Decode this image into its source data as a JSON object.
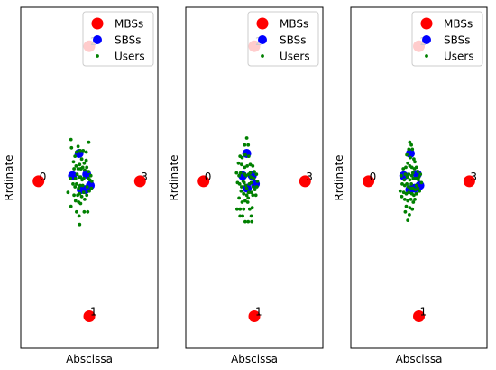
{
  "chart_data": [
    {
      "type": "scatter",
      "xlabel": "Abscissa",
      "ylabel": "Rrdinate",
      "xlim": [
        -1.35,
        1.35
      ],
      "ylim": [
        -1.2,
        1.25
      ],
      "grid": false,
      "legend_position": "top-right",
      "series": [
        {
          "name": "MBSs",
          "color": "#ff0000",
          "points": [
            {
              "x": -1.0,
              "y": 0.0,
              "label": "0"
            },
            {
              "x": 0.0,
              "y": -0.97,
              "label": "1"
            },
            {
              "x": 0.0,
              "y": 0.97,
              "label": "2"
            },
            {
              "x": 1.0,
              "y": 0.0,
              "label": "3"
            }
          ]
        },
        {
          "name": "SBSs",
          "color": "#0000ff",
          "points": [
            {
              "x": -0.2,
              "y": 0.2
            },
            {
              "x": -0.33,
              "y": 0.04
            },
            {
              "x": -0.16,
              "y": -0.06
            },
            {
              "x": -0.08,
              "y": -0.06
            },
            {
              "x": -0.05,
              "y": 0.05
            },
            {
              "x": 0.02,
              "y": -0.03
            }
          ]
        },
        {
          "name": "Users",
          "color": "#008000",
          "points": [
            {
              "x": -0.35,
              "y": 0.24
            },
            {
              "x": -0.31,
              "y": 0.14
            },
            {
              "x": -0.28,
              "y": 0.18
            },
            {
              "x": -0.25,
              "y": 0.21
            },
            {
              "x": -0.22,
              "y": 0.25
            },
            {
              "x": -0.18,
              "y": 0.22
            },
            {
              "x": -0.15,
              "y": 0.16
            },
            {
              "x": -0.12,
              "y": 0.22
            },
            {
              "x": -0.1,
              "y": 0.13
            },
            {
              "x": -0.06,
              "y": 0.21
            },
            {
              "x": -0.3,
              "y": 0.09
            },
            {
              "x": -0.26,
              "y": 0.11
            },
            {
              "x": -0.22,
              "y": 0.09
            },
            {
              "x": -0.19,
              "y": 0.12
            },
            {
              "x": -0.16,
              "y": 0.09
            },
            {
              "x": -0.13,
              "y": 0.1
            },
            {
              "x": -0.09,
              "y": 0.08
            },
            {
              "x": -0.05,
              "y": 0.1
            },
            {
              "x": -0.01,
              "y": 0.07
            },
            {
              "x": 0.03,
              "y": 0.04
            },
            {
              "x": -0.37,
              "y": 0.02
            },
            {
              "x": -0.27,
              "y": 0.02
            },
            {
              "x": -0.24,
              "y": 0.05
            },
            {
              "x": -0.2,
              "y": 0.03
            },
            {
              "x": -0.17,
              "y": 0.03
            },
            {
              "x": -0.14,
              "y": 0.01
            },
            {
              "x": -0.11,
              "y": 0.02
            },
            {
              "x": -0.02,
              "y": 0.02
            },
            {
              "x": 0.01,
              "y": 0.01
            },
            {
              "x": 0.05,
              "y": 0.0
            },
            {
              "x": -0.32,
              "y": -0.02
            },
            {
              "x": -0.28,
              "y": -0.04
            },
            {
              "x": -0.25,
              "y": -0.02
            },
            {
              "x": -0.21,
              "y": -0.05
            },
            {
              "x": -0.18,
              "y": -0.03
            },
            {
              "x": -0.13,
              "y": -0.03
            },
            {
              "x": -0.11,
              "y": -0.08
            },
            {
              "x": -0.04,
              "y": -0.04
            },
            {
              "x": 0.0,
              "y": -0.07
            },
            {
              "x": 0.04,
              "y": -0.05
            },
            {
              "x": -0.42,
              "y": -0.08
            },
            {
              "x": -0.3,
              "y": -0.1
            },
            {
              "x": -0.23,
              "y": -0.1
            },
            {
              "x": -0.19,
              "y": -0.09
            },
            {
              "x": -0.15,
              "y": -0.11
            },
            {
              "x": -0.09,
              "y": -0.13
            },
            {
              "x": -0.05,
              "y": -0.1
            },
            {
              "x": -0.27,
              "y": -0.14
            },
            {
              "x": -0.21,
              "y": -0.15
            },
            {
              "x": -0.17,
              "y": -0.16
            },
            {
              "x": -0.36,
              "y": -0.18
            },
            {
              "x": -0.25,
              "y": -0.22
            },
            {
              "x": -0.1,
              "y": -0.22
            },
            {
              "x": -0.03,
              "y": -0.22
            },
            {
              "x": -0.2,
              "y": -0.25
            },
            {
              "x": -0.19,
              "y": -0.31
            },
            {
              "x": -0.36,
              "y": 0.3
            },
            {
              "x": -0.01,
              "y": 0.28
            },
            {
              "x": -0.17,
              "y": 0.09
            },
            {
              "x": -0.06,
              "y": 0.15
            }
          ]
        }
      ]
    },
    {
      "type": "scatter",
      "xlabel": "Abscissa",
      "ylabel": "Rrdinate",
      "xlim": [
        -1.35,
        1.35
      ],
      "ylim": [
        -1.2,
        1.25
      ],
      "grid": false,
      "legend_position": "top-right",
      "series": [
        {
          "name": "MBSs",
          "color": "#ff0000",
          "points": [
            {
              "x": -1.0,
              "y": 0.0,
              "label": "0"
            },
            {
              "x": 0.0,
              "y": -0.97,
              "label": "1"
            },
            {
              "x": 0.0,
              "y": 0.97,
              "label": "2"
            },
            {
              "x": 1.0,
              "y": 0.0,
              "label": "3"
            }
          ]
        },
        {
          "name": "SBSs",
          "color": "#0000ff",
          "points": [
            {
              "x": -0.15,
              "y": 0.2
            },
            {
              "x": -0.23,
              "y": 0.04
            },
            {
              "x": -0.14,
              "y": -0.05
            },
            {
              "x": -0.04,
              "y": 0.04
            },
            {
              "x": 0.02,
              "y": -0.02
            }
          ]
        },
        {
          "name": "Users",
          "color": "#008000",
          "points": [
            {
              "x": -0.15,
              "y": 0.31
            },
            {
              "x": -0.19,
              "y": 0.26
            },
            {
              "x": -0.12,
              "y": 0.26
            },
            {
              "x": -0.18,
              "y": 0.19
            },
            {
              "x": -0.11,
              "y": 0.18
            },
            {
              "x": -0.28,
              "y": 0.18
            },
            {
              "x": -0.24,
              "y": 0.17
            },
            {
              "x": -0.31,
              "y": 0.13
            },
            {
              "x": -0.25,
              "y": 0.12
            },
            {
              "x": -0.19,
              "y": 0.1
            },
            {
              "x": -0.14,
              "y": 0.11
            },
            {
              "x": -0.08,
              "y": 0.12
            },
            {
              "x": -0.03,
              "y": 0.11
            },
            {
              "x": 0.0,
              "y": 0.07
            },
            {
              "x": 0.04,
              "y": 0.05
            },
            {
              "x": -0.35,
              "y": 0.06
            },
            {
              "x": -0.3,
              "y": 0.04
            },
            {
              "x": -0.27,
              "y": 0.06
            },
            {
              "x": -0.19,
              "y": 0.05
            },
            {
              "x": -0.16,
              "y": 0.04
            },
            {
              "x": -0.11,
              "y": 0.05
            },
            {
              "x": -0.07,
              "y": 0.03
            },
            {
              "x": -0.01,
              "y": 0.02
            },
            {
              "x": 0.06,
              "y": 0.0
            },
            {
              "x": -0.33,
              "y": -0.01
            },
            {
              "x": -0.29,
              "y": -0.02
            },
            {
              "x": -0.25,
              "y": -0.04
            },
            {
              "x": -0.2,
              "y": -0.01
            },
            {
              "x": -0.17,
              "y": -0.03
            },
            {
              "x": -0.1,
              "y": -0.02
            },
            {
              "x": -0.06,
              "y": -0.01
            },
            {
              "x": -0.02,
              "y": -0.04
            },
            {
              "x": 0.01,
              "y": -0.06
            },
            {
              "x": 0.05,
              "y": -0.04
            },
            {
              "x": -0.26,
              "y": -0.07
            },
            {
              "x": -0.21,
              "y": -0.09
            },
            {
              "x": -0.15,
              "y": -0.1
            },
            {
              "x": -0.11,
              "y": -0.08
            },
            {
              "x": -0.06,
              "y": -0.08
            },
            {
              "x": -0.03,
              "y": -0.1
            },
            {
              "x": -0.3,
              "y": -0.12
            },
            {
              "x": -0.24,
              "y": -0.15
            },
            {
              "x": -0.18,
              "y": -0.14
            },
            {
              "x": -0.13,
              "y": -0.15
            },
            {
              "x": -0.28,
              "y": -0.2
            },
            {
              "x": -0.21,
              "y": -0.2
            },
            {
              "x": -0.09,
              "y": -0.2
            },
            {
              "x": -0.04,
              "y": -0.19
            },
            {
              "x": -0.28,
              "y": -0.25
            },
            {
              "x": -0.23,
              "y": -0.25
            },
            {
              "x": -0.06,
              "y": -0.25
            },
            {
              "x": -0.18,
              "y": -0.29
            },
            {
              "x": -0.12,
              "y": -0.29
            },
            {
              "x": -0.05,
              "y": -0.29
            },
            {
              "x": -0.34,
              "y": -0.2
            },
            {
              "x": -0.15,
              "y": -0.05
            },
            {
              "x": -0.08,
              "y": 0.06
            },
            {
              "x": -0.22,
              "y": 0.0
            },
            {
              "x": -0.12,
              "y": -0.12
            },
            {
              "x": 0.03,
              "y": -0.1
            }
          ]
        }
      ]
    },
    {
      "type": "scatter",
      "xlabel": "Abscissa",
      "ylabel": "Rrdinate",
      "xlim": [
        -1.35,
        1.35
      ],
      "ylim": [
        -1.2,
        1.25
      ],
      "grid": false,
      "legend_position": "top-right",
      "series": [
        {
          "name": "MBSs",
          "color": "#ff0000",
          "points": [
            {
              "x": -1.0,
              "y": 0.0,
              "label": "0"
            },
            {
              "x": 0.0,
              "y": -0.97,
              "label": "1"
            },
            {
              "x": 0.0,
              "y": 0.97,
              "label": "2"
            },
            {
              "x": 1.0,
              "y": 0.0,
              "label": "3"
            }
          ]
        },
        {
          "name": "SBSs",
          "color": "#0000ff",
          "points": [
            {
              "x": -0.17,
              "y": 0.2
            },
            {
              "x": -0.3,
              "y": 0.04
            },
            {
              "x": -0.18,
              "y": -0.06
            },
            {
              "x": -0.08,
              "y": -0.05
            },
            {
              "x": -0.03,
              "y": 0.05
            },
            {
              "x": 0.02,
              "y": -0.03
            }
          ]
        },
        {
          "name": "Users",
          "color": "#008000",
          "points": [
            {
              "x": -0.18,
              "y": 0.28
            },
            {
              "x": -0.15,
              "y": 0.26
            },
            {
              "x": -0.2,
              "y": 0.23
            },
            {
              "x": -0.13,
              "y": 0.23
            },
            {
              "x": -0.17,
              "y": 0.17
            },
            {
              "x": -0.1,
              "y": 0.16
            },
            {
              "x": -0.22,
              "y": 0.13
            },
            {
              "x": -0.26,
              "y": 0.1
            },
            {
              "x": -0.31,
              "y": 0.09
            },
            {
              "x": -0.18,
              "y": 0.11
            },
            {
              "x": -0.14,
              "y": 0.1
            },
            {
              "x": -0.09,
              "y": 0.09
            },
            {
              "x": -0.05,
              "y": 0.1
            },
            {
              "x": -0.02,
              "y": 0.07
            },
            {
              "x": 0.03,
              "y": 0.05
            },
            {
              "x": -0.35,
              "y": 0.04
            },
            {
              "x": -0.27,
              "y": 0.05
            },
            {
              "x": -0.23,
              "y": 0.03
            },
            {
              "x": -0.2,
              "y": 0.05
            },
            {
              "x": -0.14,
              "y": 0.04
            },
            {
              "x": -0.11,
              "y": 0.02
            },
            {
              "x": -0.06,
              "y": 0.02
            },
            {
              "x": -0.01,
              "y": 0.01
            },
            {
              "x": 0.05,
              "y": -0.01
            },
            {
              "x": -0.33,
              "y": -0.02
            },
            {
              "x": -0.28,
              "y": -0.03
            },
            {
              "x": -0.24,
              "y": -0.02
            },
            {
              "x": -0.21,
              "y": -0.04
            },
            {
              "x": -0.15,
              "y": -0.02
            },
            {
              "x": -0.12,
              "y": -0.05
            },
            {
              "x": -0.05,
              "y": -0.03
            },
            {
              "x": -0.02,
              "y": -0.05
            },
            {
              "x": 0.01,
              "y": -0.07
            },
            {
              "x": -0.37,
              "y": -0.07
            },
            {
              "x": -0.3,
              "y": -0.08
            },
            {
              "x": -0.25,
              "y": -0.09
            },
            {
              "x": -0.2,
              "y": -0.08
            },
            {
              "x": -0.14,
              "y": -0.09
            },
            {
              "x": -0.1,
              "y": -0.1
            },
            {
              "x": -0.05,
              "y": -0.09
            },
            {
              "x": -0.28,
              "y": -0.13
            },
            {
              "x": -0.22,
              "y": -0.14
            },
            {
              "x": -0.16,
              "y": -0.13
            },
            {
              "x": -0.11,
              "y": -0.15
            },
            {
              "x": -0.25,
              "y": -0.18
            },
            {
              "x": -0.18,
              "y": -0.19
            },
            {
              "x": -0.13,
              "y": -0.2
            },
            {
              "x": -0.27,
              "y": -0.22
            },
            {
              "x": -0.19,
              "y": -0.24
            },
            {
              "x": -0.22,
              "y": -0.28
            },
            {
              "x": -0.08,
              "y": 0.14
            },
            {
              "x": -0.24,
              "y": 0.19
            },
            {
              "x": -0.12,
              "y": 0.06
            },
            {
              "x": -0.29,
              "y": 0.01
            },
            {
              "x": -0.07,
              "y": -0.06
            },
            {
              "x": -0.16,
              "y": -0.05
            },
            {
              "x": 0.0,
              "y": 0.03
            },
            {
              "x": -0.34,
              "y": -0.11
            },
            {
              "x": -0.18,
              "y": 0.01
            },
            {
              "x": -0.08,
              "y": -0.13
            }
          ]
        }
      ]
    }
  ]
}
